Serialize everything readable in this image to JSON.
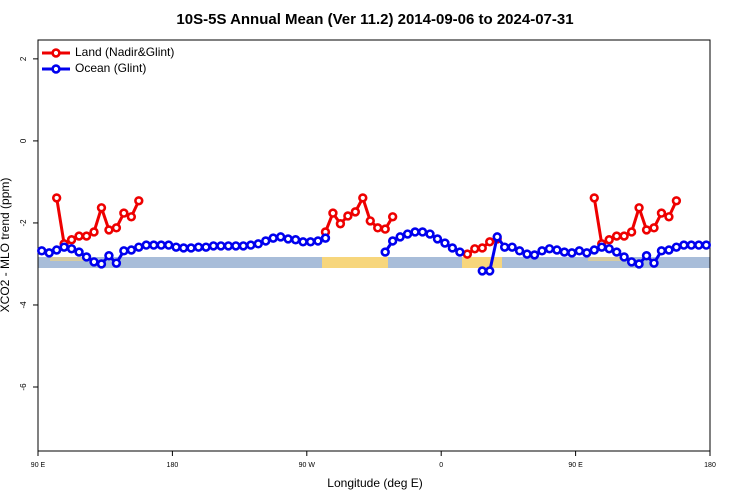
{
  "chart_data": {
    "type": "line",
    "title": "10S-5S Annual Mean (Ver 11.2)   2014-09-06 to 2024-07-31",
    "xlabel": "Longitude (deg E)",
    "ylabel": "XCO2 - MLO trend (ppm)",
    "x": [
      92.5,
      97.5,
      102.5,
      107.5,
      112.5,
      117.5,
      122.5,
      127.5,
      132.5,
      137.5,
      142.5,
      147.5,
      152.5,
      157.5,
      162.5,
      167.5,
      172.5,
      177.5,
      182.5,
      187.5,
      192.5,
      197.5,
      202.5,
      207.5,
      212.5,
      217.5,
      222.5,
      227.5,
      232.5,
      237.5,
      242.5,
      247.5,
      252.5,
      257.5,
      262.5,
      267.5,
      272.5,
      277.5,
      282.5,
      287.5,
      292.5,
      297.5,
      302.5,
      307.5,
      312.5,
      317.5,
      322.5,
      327.5,
      332.5,
      337.5,
      342.5,
      347.5,
      352.5,
      357.5,
      362.5,
      367.5,
      372.5,
      377.5,
      382.5,
      387.5,
      392.5,
      397.5,
      402.5,
      407.5,
      412.5,
      417.5,
      422.5,
      427.5,
      432.5,
      437.5,
      442.5,
      447.5,
      452.5,
      457.5,
      462.5,
      467.5,
      472.5,
      477.5,
      482.5,
      487.5,
      492.5,
      497.5,
      502.5,
      507.5,
      512.5,
      517.5,
      522.5,
      527.5,
      532.5,
      537.5
    ],
    "series": [
      {
        "name": "Land (Nadir&Glint)",
        "color": "#ee0000",
        "values": [
          null,
          null,
          -1.39,
          -2.51,
          -2.41,
          -2.32,
          -2.32,
          -2.22,
          -1.63,
          -2.17,
          -2.12,
          -1.76,
          -1.85,
          -1.46,
          null,
          null,
          null,
          null,
          null,
          null,
          null,
          null,
          null,
          null,
          null,
          null,
          null,
          null,
          null,
          null,
          null,
          null,
          null,
          null,
          null,
          null,
          null,
          null,
          -2.22,
          -1.76,
          -2.02,
          -1.83,
          -1.73,
          -1.39,
          -1.95,
          -2.12,
          -2.15,
          -1.85,
          null,
          null,
          null,
          null,
          null,
          null,
          null,
          null,
          null,
          -2.76,
          -2.63,
          -2.61,
          -2.46,
          -2.39,
          null,
          null,
          null,
          null,
          null,
          null,
          null,
          null,
          null,
          null,
          null,
          null,
          -1.39,
          -2.51,
          -2.41,
          -2.32,
          -2.32,
          -2.22,
          -1.63,
          -2.17,
          -2.12,
          -1.76,
          -1.85,
          -1.46,
          null,
          null,
          null,
          null
        ]
      },
      {
        "name": "Ocean (Glint)",
        "color": "#0000ee",
        "values": [
          -2.68,
          -2.73,
          -2.66,
          -2.59,
          -2.63,
          -2.71,
          -2.83,
          -2.95,
          -3.0,
          -2.8,
          -2.98,
          -2.68,
          -2.66,
          -2.59,
          -2.54,
          -2.54,
          -2.54,
          -2.54,
          -2.59,
          -2.61,
          -2.61,
          -2.59,
          -2.59,
          -2.56,
          -2.56,
          -2.56,
          -2.56,
          -2.56,
          -2.54,
          -2.51,
          -2.44,
          -2.37,
          -2.34,
          -2.39,
          -2.41,
          -2.46,
          -2.46,
          -2.44,
          -2.37,
          null,
          null,
          null,
          null,
          null,
          null,
          null,
          -2.71,
          -2.44,
          -2.34,
          -2.27,
          -2.22,
          -2.22,
          -2.27,
          -2.39,
          -2.49,
          -2.61,
          -2.71,
          null,
          null,
          -3.17,
          -3.17,
          -2.34,
          -2.59,
          -2.59,
          -2.68,
          -2.76,
          -2.78,
          -2.68,
          -2.63,
          -2.66,
          -2.71,
          -2.73,
          -2.68,
          -2.73,
          -2.66,
          -2.59,
          -2.63,
          -2.71,
          -2.83,
          -2.95,
          -3.0,
          -2.8,
          -2.98,
          -2.68,
          -2.66,
          -2.59,
          -2.54,
          -2.54,
          -2.54,
          -2.54
        ]
      }
    ],
    "xlim": [
      90,
      540
    ],
    "xticks": [
      {
        "value": 90,
        "label": "90 E"
      },
      180,
      {
        "value": 270,
        "label": "90 W"
      },
      {
        "value": 360,
        "label": "0"
      },
      {
        "value": 450,
        "label": "90 E"
      },
      {
        "value": 540,
        "label": "180"
      }
    ],
    "ylim": [
      -7.56,
      2.46
    ],
    "yticks": [
      2,
      0,
      -2,
      -4,
      -6
    ],
    "legend": "top-left"
  }
}
